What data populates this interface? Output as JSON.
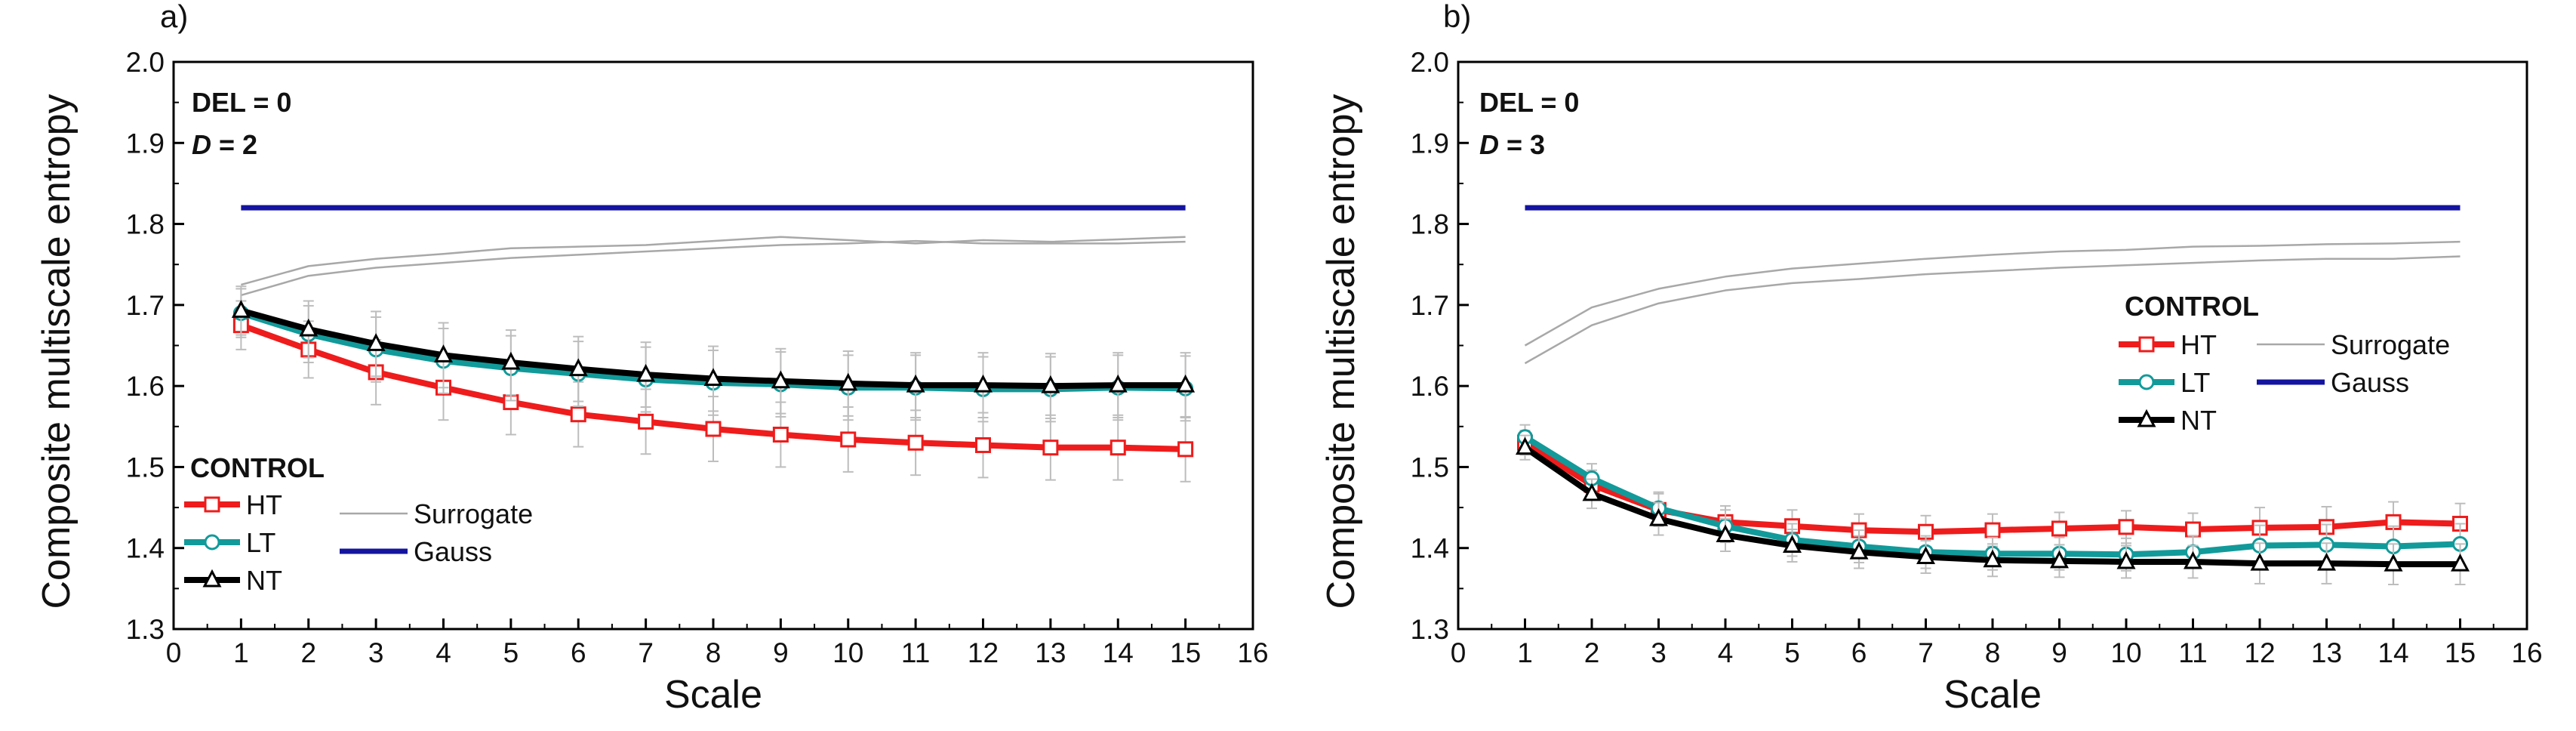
{
  "chart_data": [
    {
      "type": "line",
      "panel_label": "a)",
      "ylabel": "Composite multiscale entropy",
      "xlabel": "Scale",
      "xlim": [
        0,
        16
      ],
      "ylim": [
        1.3,
        2.0
      ],
      "xticks": [
        0,
        1,
        2,
        3,
        4,
        5,
        6,
        7,
        8,
        9,
        10,
        11,
        12,
        13,
        14,
        15,
        16
      ],
      "yticks": [
        "1.3",
        "1.4",
        "1.5",
        "1.6",
        "1.7",
        "1.8",
        "1.9",
        "2.0"
      ],
      "annotation_line1": "DEL = 0",
      "annotation_d_italic": "D",
      "annotation_d_rest": " = 2",
      "legend_title": "CONTROL",
      "legend_position": "bottom-left",
      "x": [
        1,
        2,
        3,
        4,
        5,
        6,
        7,
        8,
        9,
        10,
        11,
        12,
        13,
        14,
        15
      ],
      "series": [
        {
          "name": "HT",
          "color": "#ee1c1c",
          "marker": "square",
          "values": [
            1.675,
            1.645,
            1.617,
            1.598,
            1.58,
            1.565,
            1.556,
            1.547,
            1.54,
            1.534,
            1.53,
            1.527,
            1.524,
            1.524,
            1.522
          ],
          "err": [
            0.03,
            0.035,
            0.04,
            0.04,
            0.04,
            0.04,
            0.04,
            0.04,
            0.04,
            0.04,
            0.04,
            0.04,
            0.04,
            0.04,
            0.04
          ]
        },
        {
          "name": "LT",
          "color": "#129a9a",
          "marker": "circle",
          "values": [
            1.69,
            1.664,
            1.645,
            1.631,
            1.622,
            1.615,
            1.608,
            1.604,
            1.602,
            1.598,
            1.598,
            1.596,
            1.596,
            1.598,
            1.597
          ],
          "err": [
            0.03,
            0.035,
            0.04,
            0.04,
            0.04,
            0.04,
            0.04,
            0.04,
            0.04,
            0.04,
            0.04,
            0.04,
            0.04,
            0.04,
            0.04
          ]
        },
        {
          "name": "NT",
          "color": "#000000",
          "marker": "triangle",
          "values": [
            1.693,
            1.67,
            1.652,
            1.638,
            1.629,
            1.621,
            1.614,
            1.609,
            1.606,
            1.603,
            1.601,
            1.601,
            1.6,
            1.601,
            1.601
          ],
          "err": [
            0.03,
            0.035,
            0.04,
            0.04,
            0.04,
            0.04,
            0.04,
            0.04,
            0.04,
            0.04,
            0.04,
            0.04,
            0.04,
            0.04,
            0.04
          ]
        },
        {
          "name": "Surrogate",
          "color": "#a8a8a8",
          "marker": "none",
          "values": [
            1.725,
            1.748,
            1.757,
            1.763,
            1.77,
            1.772,
            1.774,
            1.779,
            1.784,
            1.78,
            1.776,
            1.78,
            1.778,
            1.781,
            1.784
          ]
        },
        {
          "name": "Surrogate-2",
          "color": "#a8a8a8",
          "marker": "none",
          "values": [
            1.712,
            1.736,
            1.746,
            1.752,
            1.758,
            1.762,
            1.766,
            1.77,
            1.774,
            1.776,
            1.779,
            1.776,
            1.776,
            1.776,
            1.778
          ]
        },
        {
          "name": "Gauss",
          "color": "#1414a0",
          "marker": "none",
          "values": [
            1.82,
            1.82,
            1.82,
            1.82,
            1.82,
            1.82,
            1.82,
            1.82,
            1.82,
            1.82,
            1.82,
            1.82,
            1.82,
            1.82,
            1.82
          ]
        }
      ],
      "legend": [
        {
          "label": "HT",
          "series": "HT"
        },
        {
          "label": "LT",
          "series": "LT"
        },
        {
          "label": "NT",
          "series": "NT"
        },
        {
          "label": "Surrogate",
          "series": "Surrogate"
        },
        {
          "label": "Gauss",
          "series": "Gauss"
        }
      ]
    },
    {
      "type": "line",
      "panel_label": "b)",
      "ylabel": "Composite multiscale entropy",
      "xlabel": "Scale",
      "xlim": [
        0,
        16
      ],
      "ylim": [
        1.3,
        2.0
      ],
      "xticks": [
        0,
        1,
        2,
        3,
        4,
        5,
        6,
        7,
        8,
        9,
        10,
        11,
        12,
        13,
        14,
        15,
        16
      ],
      "yticks": [
        "1.3",
        "1.4",
        "1.5",
        "1.6",
        "1.7",
        "1.8",
        "1.9",
        "2.0"
      ],
      "annotation_line1": "DEL = 0",
      "annotation_d_italic": "D",
      "annotation_d_rest": " = 3",
      "legend_title": "CONTROL",
      "legend_position": "center-right",
      "x": [
        1,
        2,
        3,
        4,
        5,
        6,
        7,
        8,
        9,
        10,
        11,
        12,
        13,
        14,
        15
      ],
      "series": [
        {
          "name": "HT",
          "color": "#ee1c1c",
          "marker": "square",
          "values": [
            1.53,
            1.478,
            1.447,
            1.432,
            1.427,
            1.422,
            1.42,
            1.422,
            1.424,
            1.426,
            1.423,
            1.425,
            1.426,
            1.432,
            1.43
          ],
          "err": [
            0.015,
            0.018,
            0.02,
            0.02,
            0.02,
            0.02,
            0.02,
            0.02,
            0.02,
            0.02,
            0.02,
            0.025,
            0.025,
            0.025,
            0.025
          ]
        },
        {
          "name": "LT",
          "color": "#129a9a",
          "marker": "circle",
          "values": [
            1.537,
            1.486,
            1.449,
            1.427,
            1.41,
            1.402,
            1.395,
            1.393,
            1.393,
            1.392,
            1.395,
            1.403,
            1.404,
            1.402,
            1.405
          ],
          "err": [
            0.015,
            0.018,
            0.02,
            0.02,
            0.02,
            0.02,
            0.02,
            0.02,
            0.02,
            0.02,
            0.02,
            0.025,
            0.025,
            0.025,
            0.025
          ]
        },
        {
          "name": "NT",
          "color": "#000000",
          "marker": "triangle",
          "values": [
            1.524,
            1.467,
            1.436,
            1.416,
            1.403,
            1.395,
            1.389,
            1.385,
            1.384,
            1.383,
            1.383,
            1.381,
            1.381,
            1.38,
            1.38
          ],
          "err": [
            0.015,
            0.018,
            0.02,
            0.02,
            0.02,
            0.02,
            0.02,
            0.02,
            0.02,
            0.02,
            0.02,
            0.025,
            0.025,
            0.025,
            0.025
          ]
        },
        {
          "name": "Surrogate",
          "color": "#a8a8a8",
          "marker": "none",
          "values": [
            1.65,
            1.697,
            1.72,
            1.735,
            1.745,
            1.751,
            1.757,
            1.762,
            1.766,
            1.768,
            1.772,
            1.773,
            1.775,
            1.776,
            1.778
          ]
        },
        {
          "name": "Surrogate-2",
          "color": "#a8a8a8",
          "marker": "none",
          "values": [
            1.628,
            1.675,
            1.702,
            1.718,
            1.727,
            1.732,
            1.738,
            1.742,
            1.746,
            1.749,
            1.752,
            1.755,
            1.757,
            1.757,
            1.76
          ]
        },
        {
          "name": "Gauss",
          "color": "#1414a0",
          "marker": "none",
          "values": [
            1.82,
            1.82,
            1.82,
            1.82,
            1.82,
            1.82,
            1.82,
            1.82,
            1.82,
            1.82,
            1.82,
            1.82,
            1.82,
            1.82,
            1.82
          ]
        }
      ],
      "legend": [
        {
          "label": "HT",
          "series": "HT"
        },
        {
          "label": "LT",
          "series": "LT"
        },
        {
          "label": "NT",
          "series": "NT"
        },
        {
          "label": "Surrogate",
          "series": "Surrogate"
        },
        {
          "label": "Gauss",
          "series": "Gauss"
        }
      ]
    }
  ]
}
